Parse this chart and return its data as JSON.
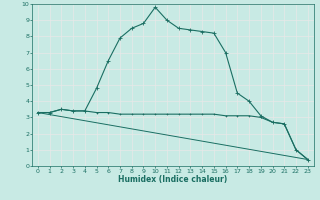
{
  "xlabel": "Humidex (Indice chaleur)",
  "ylabel": "",
  "xlim": [
    -0.5,
    23.5
  ],
  "ylim": [
    0,
    10
  ],
  "xticks": [
    0,
    1,
    2,
    3,
    4,
    5,
    6,
    7,
    8,
    9,
    10,
    11,
    12,
    13,
    14,
    15,
    16,
    17,
    18,
    19,
    20,
    21,
    22,
    23
  ],
  "yticks": [
    0,
    1,
    2,
    3,
    4,
    5,
    6,
    7,
    8,
    9,
    10
  ],
  "bg_color": "#c8eae4",
  "line_color": "#1a6e62",
  "grid_color": "#e8e8e8",
  "line1_x": [
    0,
    1,
    2,
    3,
    4,
    5,
    6,
    7,
    8,
    9,
    10,
    11,
    12,
    13,
    14,
    15,
    16,
    17,
    18,
    19,
    20,
    21,
    22,
    23
  ],
  "line1_y": [
    3.3,
    3.3,
    3.5,
    3.4,
    3.4,
    4.8,
    6.5,
    7.9,
    8.5,
    8.8,
    9.8,
    9.0,
    8.5,
    8.4,
    8.3,
    8.2,
    7.0,
    4.5,
    4.0,
    3.1,
    2.7,
    2.6,
    1.0,
    0.4
  ],
  "line2_x": [
    0,
    1,
    2,
    3,
    4,
    5,
    6,
    7,
    8,
    9,
    10,
    11,
    12,
    13,
    14,
    15,
    16,
    17,
    18,
    19,
    20,
    21,
    22,
    23
  ],
  "line2_y": [
    3.3,
    3.3,
    3.5,
    3.4,
    3.4,
    3.3,
    3.3,
    3.2,
    3.2,
    3.2,
    3.2,
    3.2,
    3.2,
    3.2,
    3.2,
    3.2,
    3.1,
    3.1,
    3.1,
    3.0,
    2.7,
    2.6,
    1.0,
    0.4
  ],
  "line3_x": [
    0,
    23
  ],
  "line3_y": [
    3.3,
    0.4
  ]
}
